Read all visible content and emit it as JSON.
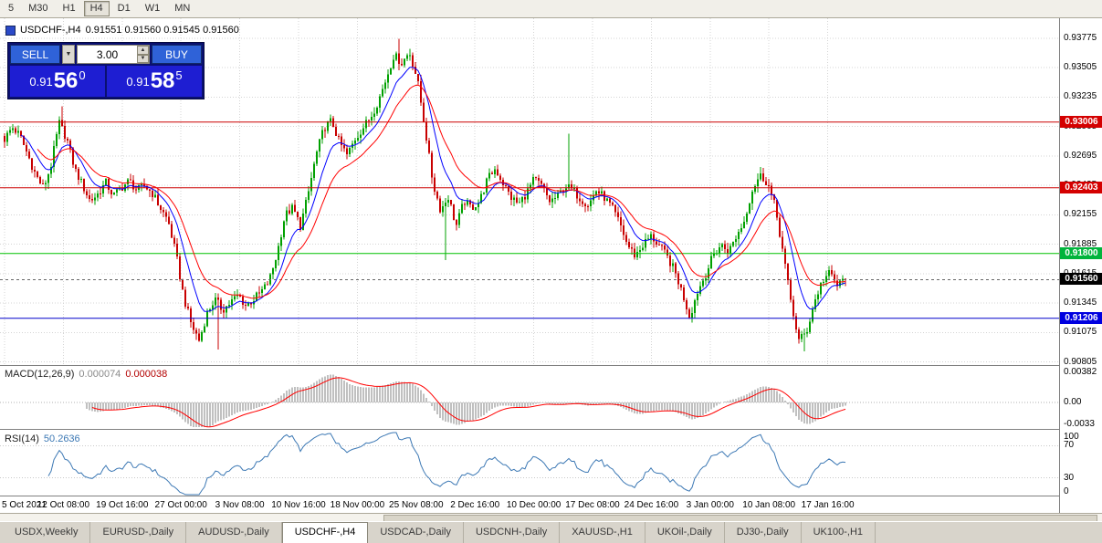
{
  "window": {
    "toolbar_timeframes": [
      {
        "label": "5"
      },
      {
        "label": "M30"
      },
      {
        "label": "H1"
      },
      {
        "label": "H4",
        "active": true
      },
      {
        "label": "D1"
      },
      {
        "label": "W1"
      },
      {
        "label": "MN"
      }
    ]
  },
  "chart": {
    "symbol": "USDCHF-,H4",
    "ohlc": "0.91551 0.91560 0.91545 0.91560"
  },
  "trade_panel": {
    "sell_label": "SELL",
    "buy_label": "BUY",
    "lot_value": "3.00",
    "sell_price": {
      "base": "0.91",
      "big": "56",
      "sup": "0"
    },
    "buy_price": {
      "base": "0.91",
      "big": "58",
      "sup": "5"
    }
  },
  "levels": [
    {
      "label": "0.93006",
      "value": 0.93006,
      "color": "#cc0000",
      "badge": "#d40000"
    },
    {
      "label": "0.92403",
      "value": 0.92403,
      "color": "#cc0000",
      "badge": "#d40000"
    },
    {
      "label": "0.91800",
      "value": 0.918,
      "color": "#00c000",
      "badge": "#00b43c"
    },
    {
      "label": "0.91560",
      "value": 0.9156,
      "color": "#555555",
      "badge": "#000000",
      "current": true
    },
    {
      "label": "0.91206",
      "value": 0.91206,
      "color": "#0000cc",
      "badge": "#0000e0"
    }
  ],
  "macd": {
    "name": "MACD(12,26,9)",
    "value_main": "0.000074",
    "value_signal": "0.000038",
    "ticks": [
      {
        "label": "0.00382",
        "value": 0.00382
      },
      {
        "label": "0.00",
        "value": 0
      },
      {
        "label": "-0.0033",
        "value": -0.0033
      }
    ]
  },
  "rsi": {
    "name": "RSI(14)",
    "value": "50.2636",
    "ticks": [
      {
        "label": "100",
        "value": 100
      },
      {
        "label": "70",
        "value": 70
      },
      {
        "label": "30",
        "value": 30
      },
      {
        "label": "0",
        "value": 0
      }
    ]
  },
  "tabs": [
    {
      "label": "USDX,Weekly"
    },
    {
      "label": "EURUSD-,Daily"
    },
    {
      "label": "AUDUSD-,Daily"
    },
    {
      "label": "USDCHF-,H4",
      "active": true
    },
    {
      "label": "USDCAD-,Daily"
    },
    {
      "label": "USDCNH-,Daily"
    },
    {
      "label": "XAUUSD-,H1"
    },
    {
      "label": "UKOil-,Daily"
    },
    {
      "label": "DJ30-,Daily"
    },
    {
      "label": "UK100-,H1"
    }
  ],
  "colors": {
    "candle_up": "#00a000",
    "candle_down": "#c80000",
    "ma_fast": "#0000ff",
    "ma_slow": "#ff0000",
    "macd_hist": "#c0c0c0",
    "macd_signal": "#ff0000",
    "rsi_line": "#3c78b4",
    "grid": "#d4d4d4"
  },
  "chart_data": {
    "type": "candlestick",
    "symbol": "USDCHF-",
    "timeframe": "H4",
    "last_close": 0.9156,
    "y_range": [
      0.9078,
      0.9392
    ],
    "y_ticks": [
      {
        "label": "0.93775",
        "value": 0.93775
      },
      {
        "label": "0.93505",
        "value": 0.93505
      },
      {
        "label": "0.93235",
        "value": 0.93235
      },
      {
        "label": "0.92965",
        "value": 0.92965
      },
      {
        "label": "0.92695",
        "value": 0.92695
      },
      {
        "label": "0.92425",
        "value": 0.92425
      },
      {
        "label": "0.92155",
        "value": 0.92155
      },
      {
        "label": "0.91885",
        "value": 0.91885
      },
      {
        "label": "0.91615",
        "value": 0.91615
      },
      {
        "label": "0.91345",
        "value": 0.91345
      },
      {
        "label": "0.91075",
        "value": 0.91075
      },
      {
        "label": "0.90805",
        "value": 0.90805
      }
    ],
    "x_ticks": [
      "5 Oct 2021",
      "12 Oct 08:00",
      "19 Oct 16:00",
      "27 Oct 00:00",
      "3 Nov 08:00",
      "10 Nov 16:00",
      "18 Nov 00:00",
      "25 Nov 08:00",
      "2 Dec 16:00",
      "10 Dec 00:00",
      "17 Dec 08:00",
      "24 Dec 16:00",
      "3 Jan 00:00",
      "10 Jan 08:00",
      "17 Jan 16:00"
    ],
    "price_path": [
      0.9285,
      0.9296,
      0.9288,
      0.927,
      0.9252,
      0.924,
      0.9262,
      0.93,
      0.9285,
      0.9258,
      0.9243,
      0.9228,
      0.9235,
      0.9245,
      0.9233,
      0.924,
      0.9247,
      0.9238,
      0.9242,
      0.9235,
      0.9222,
      0.921,
      0.918,
      0.914,
      0.9115,
      0.91,
      0.9125,
      0.9138,
      0.9128,
      0.9135,
      0.9142,
      0.9132,
      0.9138,
      0.9145,
      0.9155,
      0.918,
      0.9215,
      0.9222,
      0.9205,
      0.9235,
      0.927,
      0.9295,
      0.9302,
      0.9282,
      0.927,
      0.9285,
      0.9295,
      0.9305,
      0.932,
      0.934,
      0.9362,
      0.9355,
      0.9365,
      0.934,
      0.9295,
      0.9245,
      0.922,
      0.9232,
      0.9205,
      0.9228,
      0.9222,
      0.9228,
      0.9248,
      0.9258,
      0.9245,
      0.9232,
      0.9225,
      0.9235,
      0.9248,
      0.9242,
      0.9228,
      0.9232,
      0.9242,
      0.9238,
      0.923,
      0.9225,
      0.9238,
      0.9232,
      0.9222,
      0.9208,
      0.9188,
      0.9178,
      0.9188,
      0.9196,
      0.9188,
      0.9178,
      0.9165,
      0.9145,
      0.9122,
      0.9145,
      0.916,
      0.9178,
      0.9188,
      0.9182,
      0.9196,
      0.921,
      0.9238,
      0.9252,
      0.9245,
      0.9222,
      0.918,
      0.9135,
      0.91,
      0.9108,
      0.9135,
      0.9155,
      0.9162,
      0.915,
      0.9158
    ],
    "spikes": [
      {
        "t": 0.07,
        "high": 0.9315
      },
      {
        "t": 0.47,
        "high": 0.9377
      },
      {
        "t": 0.255,
        "low": 0.9092
      },
      {
        "t": 0.525,
        "low": 0.9174
      },
      {
        "t": 0.672,
        "high": 0.929
      },
      {
        "t": 0.952,
        "low": 0.909
      }
    ]
  }
}
